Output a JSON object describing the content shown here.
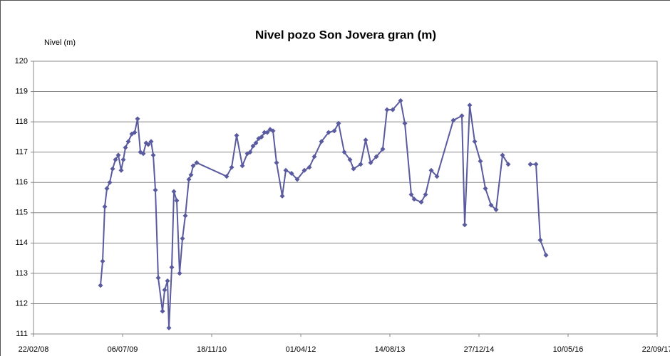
{
  "chart_data": {
    "type": "line",
    "title": "Nivel pozo Son Jovera gran (m)",
    "y_label": "Nivel (m)",
    "x": [
      39876,
      39888,
      39900,
      39912,
      39928,
      39944,
      39960,
      39976,
      39992,
      40004,
      40016,
      40032,
      40052,
      40068,
      40084,
      40100,
      40116,
      40132,
      40144,
      40160,
      40172,
      40184,
      40200,
      40224,
      40236,
      40252,
      40260,
      40276,
      40288,
      40304,
      40320,
      40336,
      40352,
      40372,
      40384,
      40396,
      40416,
      40584,
      40612,
      40640,
      40672,
      40700,
      40716,
      40732,
      40748,
      40764,
      40780,
      40796,
      40812,
      40828,
      40844,
      40864,
      40896,
      40916,
      40948,
      40980,
      41020,
      41048,
      41076,
      41116,
      41156,
      41188,
      41212,
      41244,
      41276,
      41296,
      41336,
      41364,
      41392,
      41424,
      41460,
      41484,
      41516,
      41560,
      41584,
      41620,
      41636,
      41676,
      41700,
      41732,
      41764,
      41856,
      41904,
      41920,
      41948,
      41976,
      42008,
      42036,
      42068,
      42096,
      42132,
      42164,
      42200,
      42288,
      42320,
      42344,
      42376
    ],
    "series": [
      {
        "name": "Nivel (m)",
        "color": "#5a5a9e",
        "values": [
          112.6,
          113.4,
          115.2,
          115.8,
          116.0,
          116.45,
          116.75,
          116.9,
          116.4,
          116.75,
          117.15,
          117.35,
          117.6,
          117.65,
          118.1,
          117.0,
          116.95,
          117.3,
          117.25,
          117.35,
          116.9,
          115.75,
          112.85,
          111.75,
          112.45,
          112.75,
          111.2,
          113.2,
          115.7,
          115.4,
          113.0,
          114.15,
          114.9,
          116.1,
          116.25,
          116.55,
          116.65,
          116.2,
          116.5,
          117.55,
          116.55,
          116.95,
          117.0,
          117.2,
          117.3,
          117.45,
          117.5,
          117.65,
          117.65,
          117.75,
          117.7,
          116.65,
          115.55,
          116.4,
          116.3,
          116.1,
          116.4,
          116.5,
          116.85,
          117.35,
          117.65,
          117.7,
          117.95,
          117.0,
          116.75,
          116.45,
          116.6,
          117.4,
          116.65,
          116.85,
          117.1,
          118.4,
          118.4,
          118.7,
          117.95,
          115.6,
          115.45,
          115.35,
          115.6,
          116.4,
          116.2,
          118.05,
          118.2,
          114.6,
          118.55,
          117.35,
          116.7,
          115.8,
          115.25,
          115.1,
          116.9,
          116.6,
          null,
          116.6,
          116.6,
          114.1,
          113.6
        ]
      }
    ],
    "xlim": [
      39500,
      43000
    ],
    "xticks": [
      {
        "value": 39500,
        "label": "22/02/08"
      },
      {
        "value": 40000,
        "label": "06/07/09"
      },
      {
        "value": 40500,
        "label": "18/11/10"
      },
      {
        "value": 41000,
        "label": "01/04/12"
      },
      {
        "value": 41500,
        "label": "14/08/13"
      },
      {
        "value": 42000,
        "label": "27/12/14"
      },
      {
        "value": 42500,
        "label": "10/05/16"
      },
      {
        "value": 43000,
        "label": "22/09/17"
      }
    ],
    "ylim": [
      111,
      120
    ],
    "yticks": [
      111,
      112,
      113,
      114,
      115,
      116,
      117,
      118,
      119,
      120
    ],
    "grid": true
  }
}
